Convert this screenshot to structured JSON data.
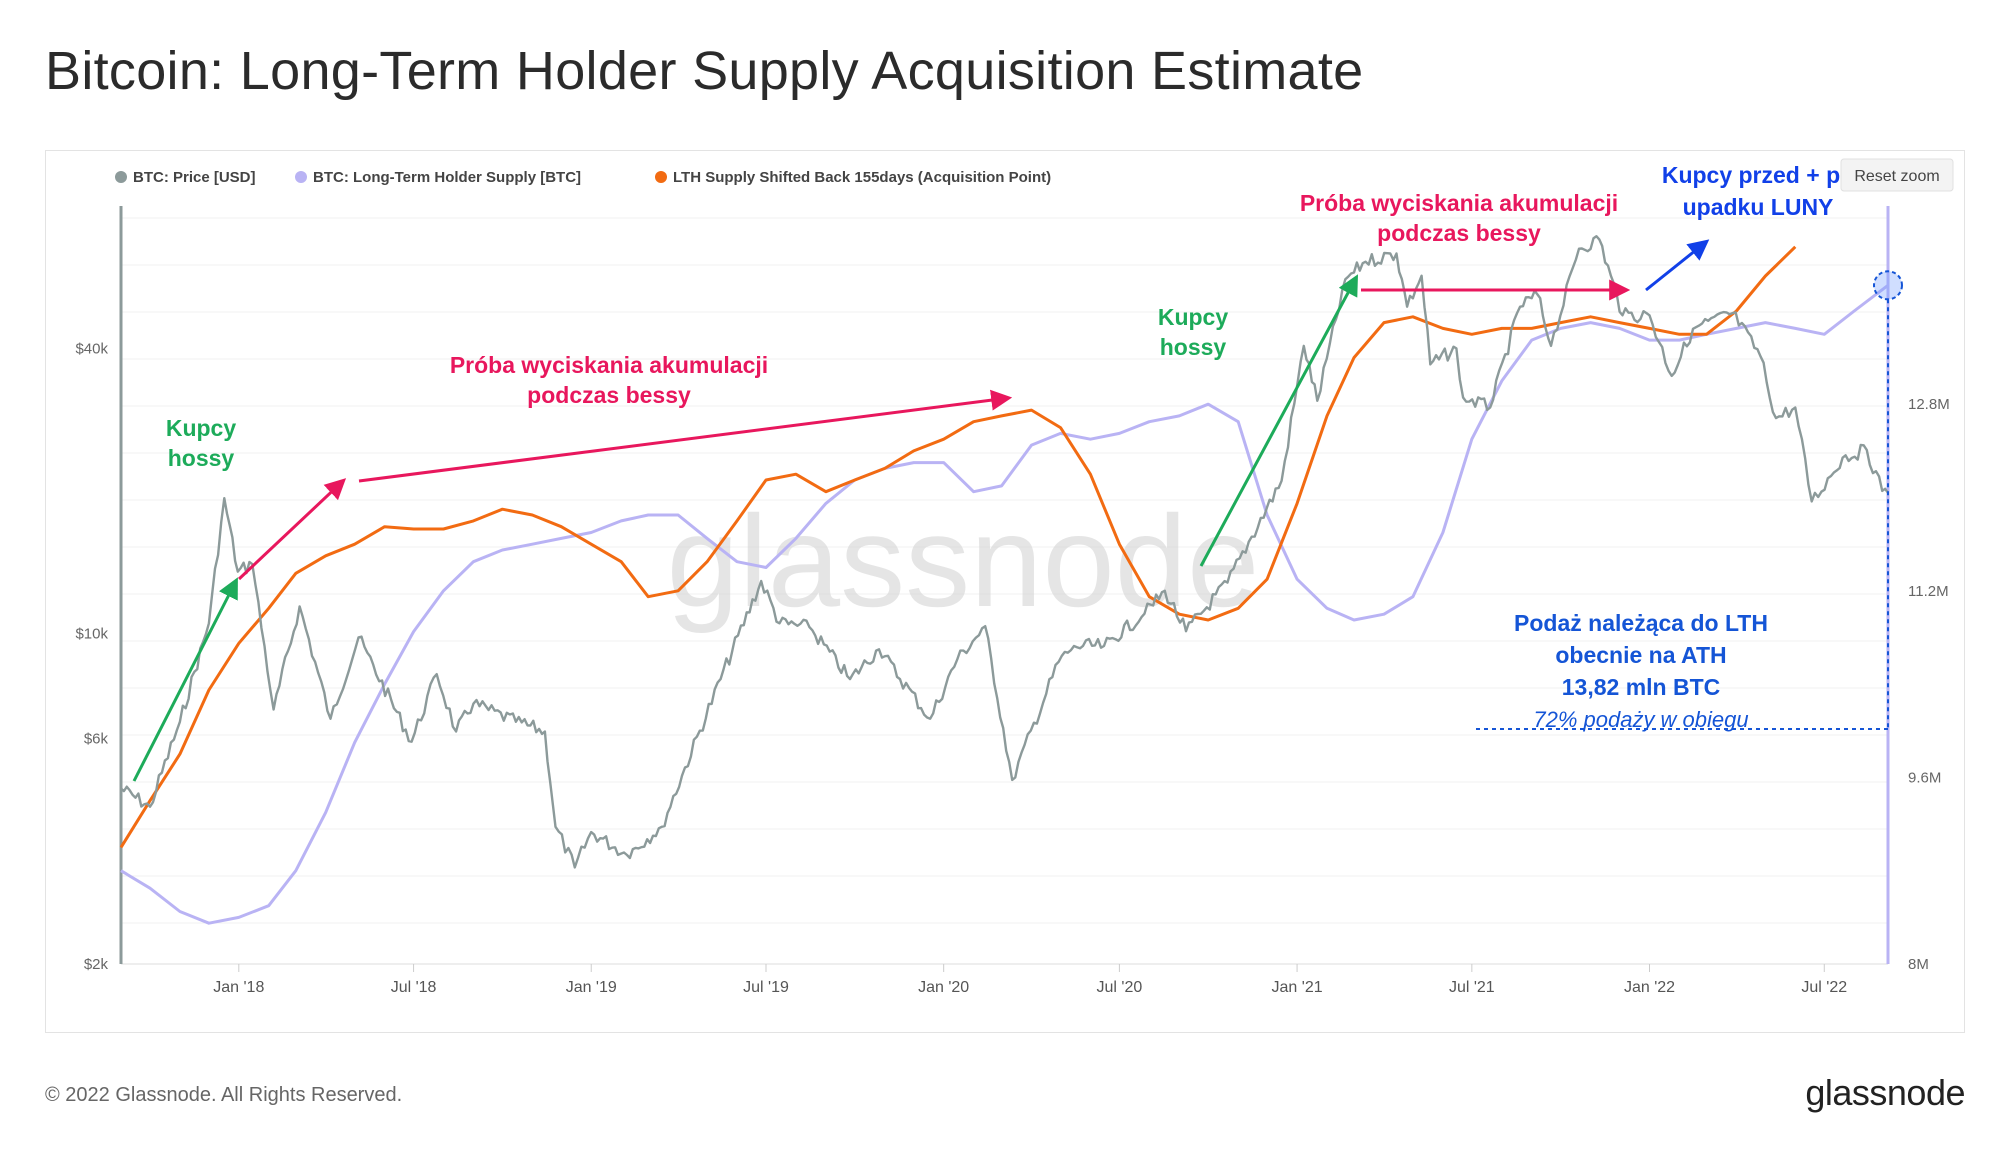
{
  "page": {
    "title": "Bitcoin: Long-Term Holder Supply Acquisition Estimate",
    "copyright": "© 2022 Glassnode. All Rights Reserved.",
    "brand": "glassnode",
    "watermark": "glassnode",
    "reset_zoom": "Reset zoom"
  },
  "chart_data": {
    "type": "line",
    "x_range": [
      "2017-09-01",
      "2022-09-05"
    ],
    "x_ticks": [
      "Jan '18",
      "Jul '18",
      "Jan '19",
      "Jul '19",
      "Jan '20",
      "Jul '20",
      "Jan '21",
      "Jul '21",
      "Jan '22",
      "Jul '22"
    ],
    "y_left": {
      "label": "BTC: Price [USD]",
      "scale": "log",
      "range": [
        2000,
        80000
      ],
      "ticks": [
        "$2k",
        "$6k",
        "$10k",
        "$40k"
      ],
      "tick_values": [
        2000,
        6000,
        10000,
        40000
      ]
    },
    "y_right": {
      "label": "LTH supply [BTC]",
      "range": [
        8.0,
        14.5
      ],
      "unit": "M",
      "ticks": [
        "8M",
        "9.6M",
        "11.2M",
        "12.8M"
      ],
      "tick_values": [
        8.0,
        9.6,
        11.2,
        12.8
      ]
    },
    "legend": [
      {
        "name": "BTC: Price [USD]",
        "color": "#8c9a9a"
      },
      {
        "name": "BTC: Long-Term Holder Supply [BTC]",
        "color": "#b9b3f4"
      },
      {
        "name": "LTH Supply Shifted Back 155days (Acquisition Point)",
        "color": "#f26b12"
      }
    ],
    "series": [
      {
        "name": "BTC: Price [USD]",
        "axis": "left",
        "color": "#8c9a9a",
        "points": [
          [
            "2017-09-01",
            4700
          ],
          [
            "2017-10-01",
            4300
          ],
          [
            "2017-11-01",
            6500
          ],
          [
            "2017-12-01",
            10500
          ],
          [
            "2017-12-17",
            19300
          ],
          [
            "2017-12-31",
            13500
          ],
          [
            "2018-01-15",
            14000
          ],
          [
            "2018-02-06",
            6900
          ],
          [
            "2018-03-05",
            11400
          ],
          [
            "2018-04-06",
            6600
          ],
          [
            "2018-05-05",
            9800
          ],
          [
            "2018-06-29",
            5900
          ],
          [
            "2018-07-25",
            8200
          ],
          [
            "2018-08-14",
            6200
          ],
          [
            "2018-09-01",
            7100
          ],
          [
            "2018-10-15",
            6500
          ],
          [
            "2018-11-14",
            6200
          ],
          [
            "2018-11-25",
            3900
          ],
          [
            "2018-12-15",
            3200
          ],
          [
            "2019-01-01",
            3800
          ],
          [
            "2019-02-07",
            3400
          ],
          [
            "2019-03-15",
            3900
          ],
          [
            "2019-04-05",
            5000
          ],
          [
            "2019-05-15",
            8000
          ],
          [
            "2019-06-26",
            12900
          ],
          [
            "2019-07-15",
            10500
          ],
          [
            "2019-08-15",
            10300
          ],
          [
            "2019-09-26",
            8000
          ],
          [
            "2019-10-26",
            9250
          ],
          [
            "2019-12-18",
            6600
          ],
          [
            "2020-01-15",
            8800
          ],
          [
            "2020-02-13",
            10350
          ],
          [
            "2020-03-12",
            4900
          ],
          [
            "2020-04-29",
            8700
          ],
          [
            "2020-05-15",
            9400
          ],
          [
            "2020-06-15",
            9400
          ],
          [
            "2020-07-27",
            11000
          ],
          [
            "2020-08-17",
            12300
          ],
          [
            "2020-09-08",
            10100
          ],
          [
            "2020-10-21",
            12800
          ],
          [
            "2020-11-15",
            16000
          ],
          [
            "2020-12-16",
            21000
          ],
          [
            "2021-01-08",
            40500
          ],
          [
            "2021-01-22",
            31000
          ],
          [
            "2021-02-20",
            56000
          ],
          [
            "2021-03-13",
            61000
          ],
          [
            "2021-04-14",
            63500
          ],
          [
            "2021-04-25",
            49000
          ],
          [
            "2021-05-10",
            57000
          ],
          [
            "2021-05-19",
            37000
          ],
          [
            "2021-06-15",
            40000
          ],
          [
            "2021-06-22",
            31500
          ],
          [
            "2021-07-20",
            30000
          ],
          [
            "2021-08-20",
            49000
          ],
          [
            "2021-09-07",
            52000
          ],
          [
            "2021-09-21",
            40500
          ],
          [
            "2021-10-20",
            65000
          ],
          [
            "2021-11-10",
            68000
          ],
          [
            "2021-12-04",
            47000
          ],
          [
            "2022-01-01",
            47000
          ],
          [
            "2022-01-24",
            35000
          ],
          [
            "2022-02-15",
            44000
          ],
          [
            "2022-03-28",
            47500
          ],
          [
            "2022-04-26",
            38500
          ],
          [
            "2022-05-12",
            28500
          ],
          [
            "2022-06-01",
            30000
          ],
          [
            "2022-06-18",
            19000
          ],
          [
            "2022-07-08",
            21500
          ],
          [
            "2022-07-20",
            23500
          ],
          [
            "2022-08-14",
            24400
          ],
          [
            "2022-08-30",
            20000
          ],
          [
            "2022-09-05",
            19800
          ]
        ]
      },
      {
        "name": "BTC: Long-Term Holder Supply [BTC]",
        "axis": "right",
        "color": "#b9b3f4",
        "points": [
          [
            "2017-09-01",
            8.8
          ],
          [
            "2017-10-01",
            8.65
          ],
          [
            "2017-11-01",
            8.45
          ],
          [
            "2017-12-01",
            8.35
          ],
          [
            "2018-01-01",
            8.4
          ],
          [
            "2018-02-01",
            8.5
          ],
          [
            "2018-03-01",
            8.8
          ],
          [
            "2018-04-01",
            9.3
          ],
          [
            "2018-05-01",
            9.9
          ],
          [
            "2018-06-01",
            10.4
          ],
          [
            "2018-07-01",
            10.85
          ],
          [
            "2018-08-01",
            11.2
          ],
          [
            "2018-09-01",
            11.45
          ],
          [
            "2018-10-01",
            11.55
          ],
          [
            "2018-11-01",
            11.6
          ],
          [
            "2018-12-01",
            11.65
          ],
          [
            "2019-01-01",
            11.7
          ],
          [
            "2019-02-01",
            11.8
          ],
          [
            "2019-03-01",
            11.85
          ],
          [
            "2019-04-01",
            11.85
          ],
          [
            "2019-05-01",
            11.65
          ],
          [
            "2019-06-01",
            11.45
          ],
          [
            "2019-07-01",
            11.4
          ],
          [
            "2019-08-01",
            11.65
          ],
          [
            "2019-09-01",
            11.95
          ],
          [
            "2019-10-01",
            12.15
          ],
          [
            "2019-11-01",
            12.25
          ],
          [
            "2019-12-01",
            12.3
          ],
          [
            "2020-01-01",
            12.3
          ],
          [
            "2020-02-01",
            12.05
          ],
          [
            "2020-03-01",
            12.1
          ],
          [
            "2020-04-01",
            12.45
          ],
          [
            "2020-05-01",
            12.55
          ],
          [
            "2020-06-01",
            12.5
          ],
          [
            "2020-07-01",
            12.55
          ],
          [
            "2020-08-01",
            12.65
          ],
          [
            "2020-09-01",
            12.7
          ],
          [
            "2020-10-01",
            12.8
          ],
          [
            "2020-11-01",
            12.65
          ],
          [
            "2020-12-01",
            11.85
          ],
          [
            "2021-01-01",
            11.3
          ],
          [
            "2021-02-01",
            11.05
          ],
          [
            "2021-03-01",
            10.95
          ],
          [
            "2021-04-01",
            11.0
          ],
          [
            "2021-05-01",
            11.15
          ],
          [
            "2021-06-01",
            11.7
          ],
          [
            "2021-07-01",
            12.5
          ],
          [
            "2021-08-01",
            13.0
          ],
          [
            "2021-09-01",
            13.35
          ],
          [
            "2021-10-01",
            13.45
          ],
          [
            "2021-11-01",
            13.5
          ],
          [
            "2021-12-01",
            13.45
          ],
          [
            "2022-01-01",
            13.35
          ],
          [
            "2022-02-01",
            13.35
          ],
          [
            "2022-03-01",
            13.4
          ],
          [
            "2022-04-01",
            13.45
          ],
          [
            "2022-05-01",
            13.5
          ],
          [
            "2022-06-01",
            13.45
          ],
          [
            "2022-07-01",
            13.4
          ],
          [
            "2022-08-01",
            13.6
          ],
          [
            "2022-09-05",
            13.82
          ]
        ]
      },
      {
        "name": "LTH Supply Shifted Back 155days (Acquisition Point)",
        "axis": "right",
        "color": "#f26b12",
        "points": [
          [
            "2017-09-01",
            9.0
          ],
          [
            "2017-10-01",
            9.4
          ],
          [
            "2017-11-01",
            9.8
          ],
          [
            "2017-12-01",
            10.35
          ],
          [
            "2018-01-01",
            10.75
          ],
          [
            "2018-02-01",
            11.05
          ],
          [
            "2018-03-01",
            11.35
          ],
          [
            "2018-04-01",
            11.5
          ],
          [
            "2018-05-01",
            11.6
          ],
          [
            "2018-06-01",
            11.75
          ],
          [
            "2018-07-01",
            11.73
          ],
          [
            "2018-08-01",
            11.73
          ],
          [
            "2018-09-01",
            11.8
          ],
          [
            "2018-10-01",
            11.9
          ],
          [
            "2018-11-01",
            11.85
          ],
          [
            "2018-12-01",
            11.75
          ],
          [
            "2019-01-01",
            11.6
          ],
          [
            "2019-02-01",
            11.45
          ],
          [
            "2019-03-01",
            11.15
          ],
          [
            "2019-04-01",
            11.2
          ],
          [
            "2019-05-01",
            11.45
          ],
          [
            "2019-06-01",
            11.8
          ],
          [
            "2019-07-01",
            12.15
          ],
          [
            "2019-08-01",
            12.2
          ],
          [
            "2019-09-01",
            12.05
          ],
          [
            "2019-10-01",
            12.15
          ],
          [
            "2019-11-01",
            12.25
          ],
          [
            "2019-12-01",
            12.4
          ],
          [
            "2020-01-01",
            12.5
          ],
          [
            "2020-02-01",
            12.65
          ],
          [
            "2020-03-01",
            12.7
          ],
          [
            "2020-04-01",
            12.75
          ],
          [
            "2020-05-01",
            12.6
          ],
          [
            "2020-06-01",
            12.2
          ],
          [
            "2020-07-01",
            11.6
          ],
          [
            "2020-08-01",
            11.15
          ],
          [
            "2020-09-01",
            11.0
          ],
          [
            "2020-10-01",
            10.95
          ],
          [
            "2020-11-01",
            11.05
          ],
          [
            "2020-12-01",
            11.3
          ],
          [
            "2021-01-01",
            11.95
          ],
          [
            "2021-02-01",
            12.7
          ],
          [
            "2021-03-01",
            13.2
          ],
          [
            "2021-04-01",
            13.5
          ],
          [
            "2021-05-01",
            13.55
          ],
          [
            "2021-06-01",
            13.45
          ],
          [
            "2021-07-01",
            13.4
          ],
          [
            "2021-08-01",
            13.45
          ],
          [
            "2021-09-01",
            13.45
          ],
          [
            "2021-10-01",
            13.5
          ],
          [
            "2021-11-01",
            13.55
          ],
          [
            "2021-12-01",
            13.5
          ],
          [
            "2022-01-01",
            13.45
          ],
          [
            "2022-02-01",
            13.4
          ],
          [
            "2022-03-01",
            13.4
          ],
          [
            "2022-04-01",
            13.6
          ],
          [
            "2022-05-01",
            13.9
          ],
          [
            "2022-06-01",
            14.15
          ]
        ]
      }
    ],
    "annotations": [
      {
        "id": "kupcy1",
        "lines": [
          "Kupcy",
          "hossy"
        ],
        "color": "#1dab5a"
      },
      {
        "id": "bessy1",
        "lines": [
          "Próba wyciskania akumulacji",
          "podczas bessy"
        ],
        "color": "#e8175d"
      },
      {
        "id": "kupcy2",
        "lines": [
          "Kupcy",
          "hossy"
        ],
        "color": "#1dab5a"
      },
      {
        "id": "bessy2",
        "lines": [
          "Próba wyciskania akumulacji",
          "podczas bessy"
        ],
        "color": "#e8175d"
      },
      {
        "id": "luna",
        "lines": [
          "Kupcy przed + po",
          "upadku LUNY"
        ],
        "color": "#1140e8"
      },
      {
        "id": "ath",
        "lines": [
          "Podaż należąca do LTH",
          "obecnie na ATH",
          "13,82 mln BTC"
        ],
        "sub": "72% podaży w obiegu",
        "color": "#1555d6"
      }
    ]
  }
}
